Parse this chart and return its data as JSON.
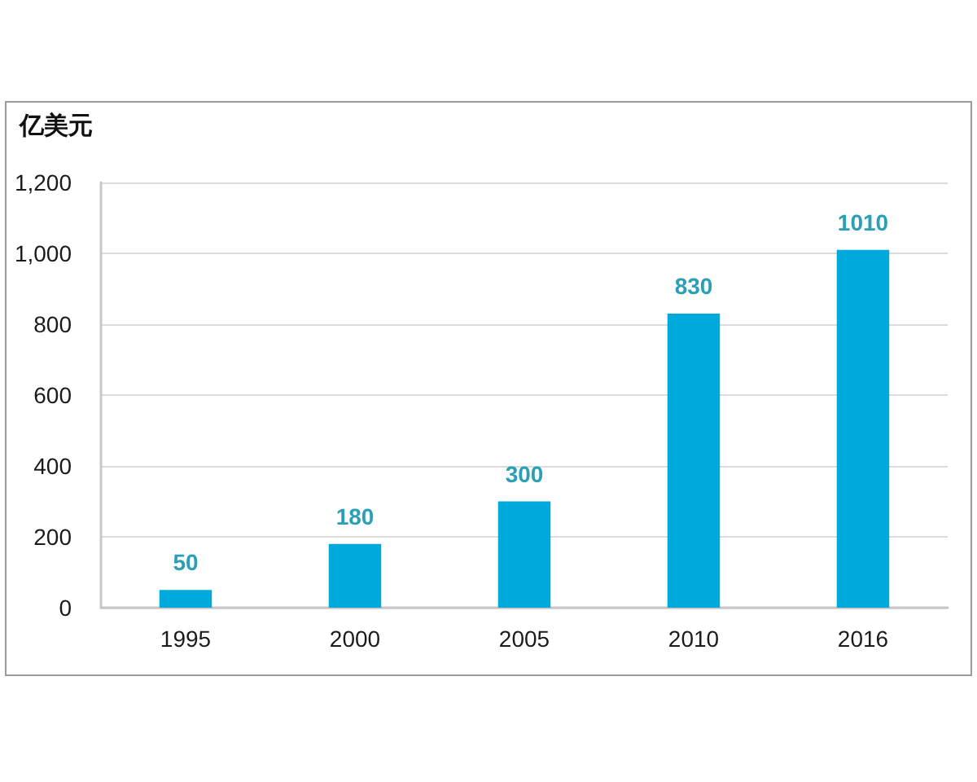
{
  "chart_data": {
    "type": "bar",
    "ylabel": "亿美元",
    "categories": [
      "1995",
      "2000",
      "2005",
      "2010",
      "2016"
    ],
    "values": [
      50,
      180,
      300,
      830,
      1010
    ],
    "color": "#00a9db",
    "ylim": [
      0,
      1200
    ],
    "yticks": [
      0,
      200,
      400,
      600,
      800,
      {
        "value": 1000,
        "label": "1,000"
      },
      {
        "value": 1200,
        "label": "1,200"
      }
    ],
    "grid": "y",
    "data_labels": true
  }
}
